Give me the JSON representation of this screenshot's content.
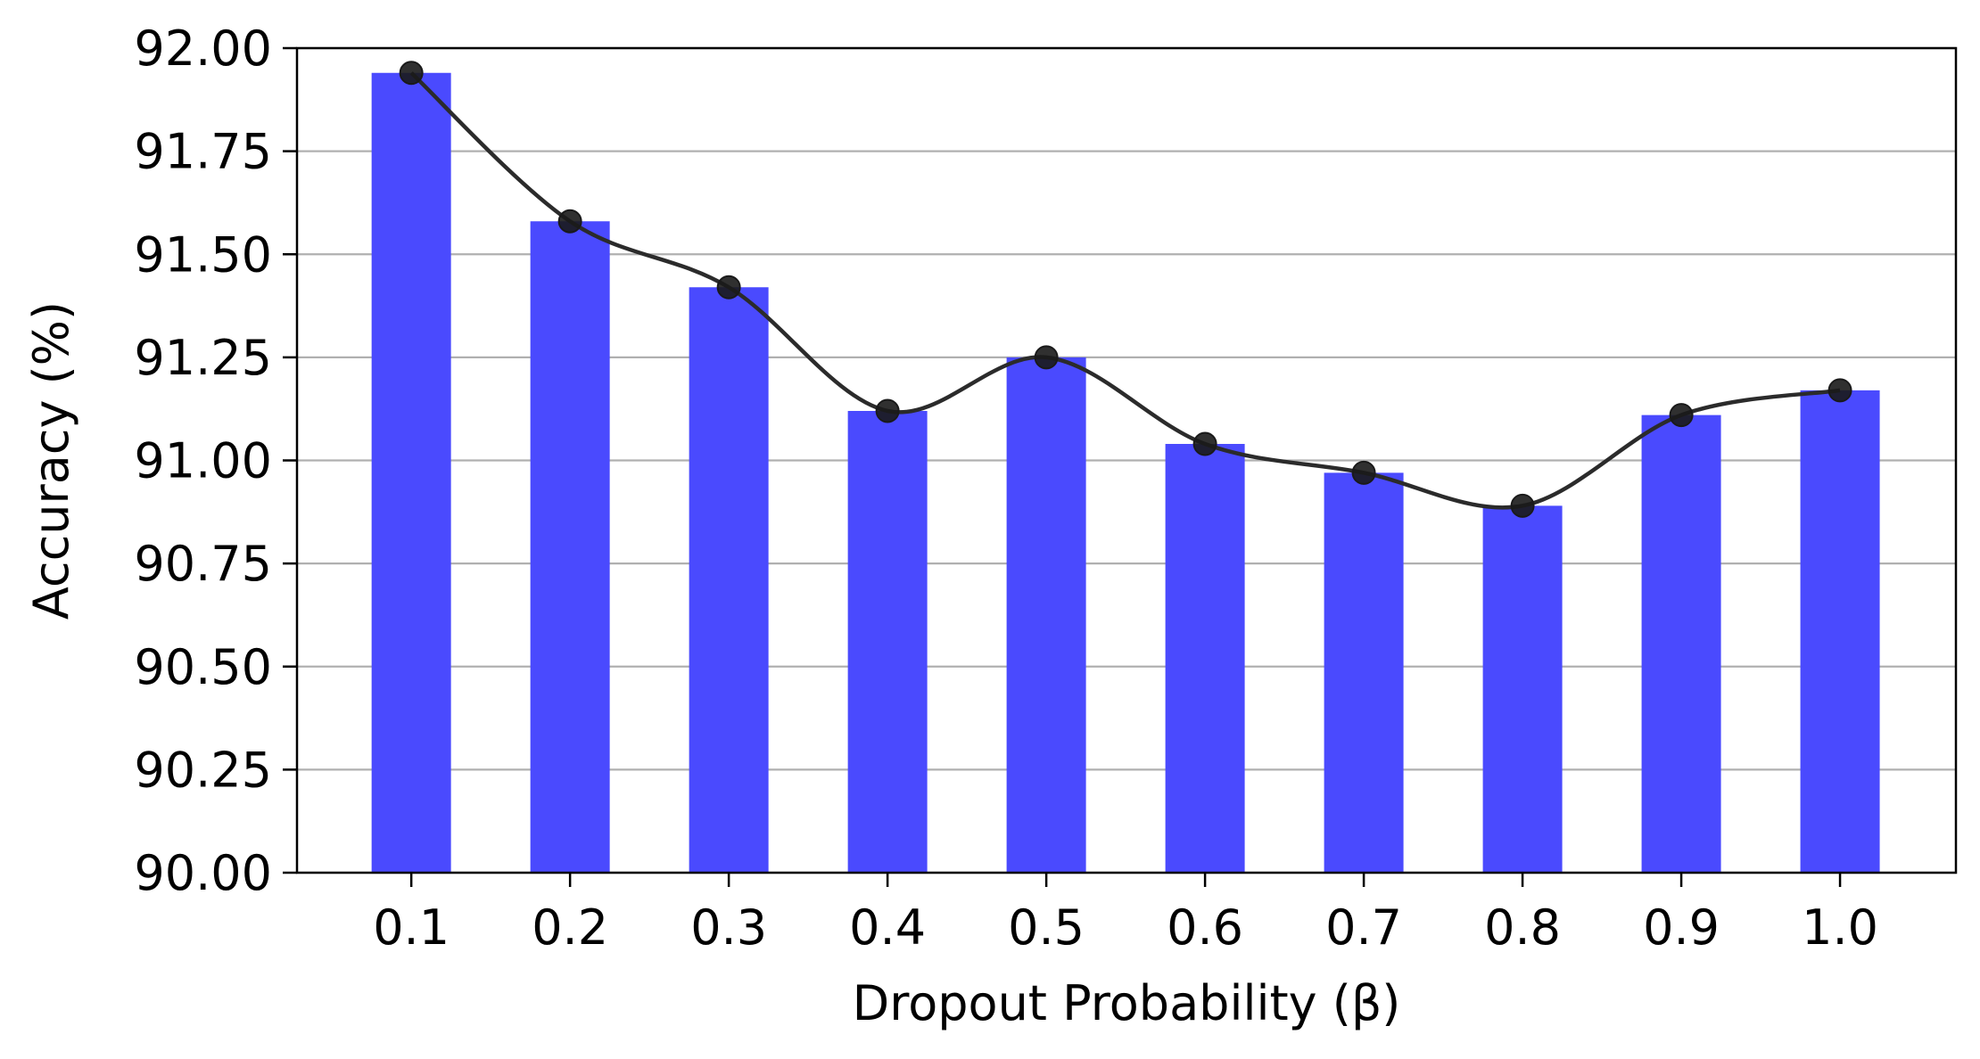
{
  "chart_data": {
    "type": "bar",
    "categories": [
      "0.1",
      "0.2",
      "0.3",
      "0.4",
      "0.5",
      "0.6",
      "0.7",
      "0.8",
      "0.9",
      "1.0"
    ],
    "series": [
      {
        "values": [
          91.94,
          91.58,
          91.42,
          91.12,
          91.25,
          91.04,
          90.97,
          90.89,
          91.11,
          91.17
        ]
      }
    ],
    "overlay": {
      "type": "line",
      "style": "smooth curve with circular markers",
      "values": [
        91.94,
        91.58,
        91.42,
        91.12,
        91.25,
        91.04,
        90.97,
        90.89,
        91.11,
        91.17
      ]
    },
    "xlabel": "Dropout Probability (β)",
    "ylabel": "Accuracy (%)",
    "ylim": [
      90.0,
      92.0
    ],
    "yticks": [
      "90.00",
      "90.25",
      "90.50",
      "90.75",
      "91.00",
      "91.25",
      "91.50",
      "91.75",
      "92.00"
    ],
    "grid": "horizontal",
    "colors": {
      "bar": "#4a4afe",
      "line": "#2b2b2b",
      "marker": "#1a1a1a",
      "grid": "#b0b0b0"
    }
  }
}
